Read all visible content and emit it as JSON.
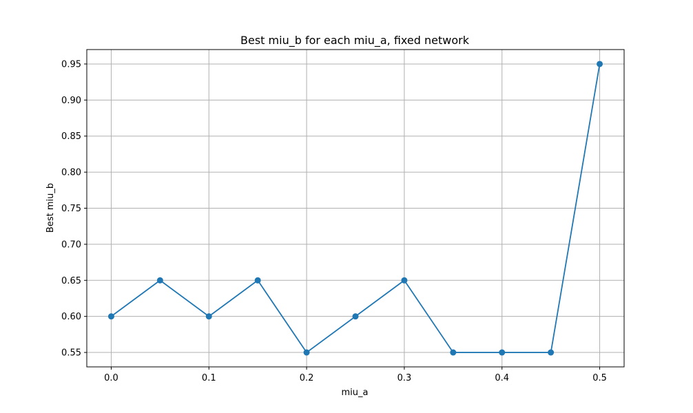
{
  "chart_data": {
    "type": "line",
    "title": "Best miu_b for each miu_a, fixed network",
    "xlabel": "miu_a",
    "ylabel": "Best miu_b",
    "x": [
      0.0,
      0.05,
      0.1,
      0.15,
      0.2,
      0.25,
      0.3,
      0.35,
      0.4,
      0.45,
      0.5
    ],
    "series": [
      {
        "values": [
          0.6,
          0.65,
          0.6,
          0.65,
          0.55,
          0.6,
          0.65,
          0.55,
          0.55,
          0.55,
          0.95
        ]
      }
    ],
    "xlim": [
      -0.025,
      0.525
    ],
    "ylim": [
      0.53,
      0.97
    ],
    "xticks": [
      "0.0",
      "0.1",
      "0.2",
      "0.3",
      "0.4",
      "0.5"
    ],
    "yticks": [
      "0.55",
      "0.60",
      "0.65",
      "0.70",
      "0.75",
      "0.80",
      "0.85",
      "0.90",
      "0.95"
    ],
    "grid": true,
    "color": "#1f77b4",
    "marker": "circle"
  }
}
